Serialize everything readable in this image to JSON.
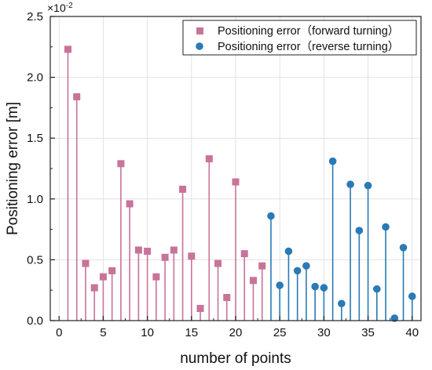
{
  "chart_data": {
    "type": "scatter",
    "style": "stem",
    "xlabel": "number of points",
    "ylabel": "Positioning error [m]",
    "y_multiplier_label": "×10",
    "y_multiplier_exp": "-2",
    "xlim": [
      -1,
      41
    ],
    "ylim": [
      0,
      2.5
    ],
    "x_ticks": [
      0,
      5,
      10,
      15,
      20,
      25,
      30,
      35,
      40
    ],
    "x_tick_labels": [
      "0",
      "5",
      "10",
      "15",
      "20",
      "25",
      "30",
      "35",
      "40"
    ],
    "y_ticks": [
      0,
      0.5,
      1.0,
      1.5,
      2.0,
      2.5
    ],
    "y_tick_labels": [
      "0.0",
      "0.5",
      "1.0",
      "1.5",
      "2.0",
      "2.5"
    ],
    "grid": true,
    "legend_position": "top-right",
    "series": [
      {
        "name": "Positioning error（forward turning）",
        "color": "#c8739a",
        "marker": "square",
        "x": [
          1,
          2,
          3,
          4,
          5,
          6,
          7,
          8,
          9,
          10,
          11,
          12,
          13,
          14,
          15,
          16,
          17,
          18,
          19,
          20,
          21,
          22,
          23
        ],
        "y": [
          2.23,
          1.84,
          0.47,
          0.27,
          0.36,
          0.41,
          1.29,
          0.96,
          0.58,
          0.57,
          0.36,
          0.52,
          0.58,
          1.08,
          0.53,
          0.1,
          1.33,
          0.47,
          0.19,
          1.14,
          0.55,
          0.33,
          0.45
        ]
      },
      {
        "name": "Positioning error（reverse turning）",
        "color": "#2a7ab5",
        "marker": "circle",
        "x": [
          24,
          25,
          26,
          27,
          28,
          29,
          30,
          31,
          32,
          33,
          34,
          35,
          36,
          37,
          38,
          39,
          40
        ],
        "y": [
          0.86,
          0.29,
          0.57,
          0.41,
          0.45,
          0.28,
          0.27,
          1.31,
          0.14,
          1.12,
          0.74,
          1.11,
          0.26,
          0.77,
          0.02,
          0.6,
          0.2
        ]
      }
    ]
  }
}
